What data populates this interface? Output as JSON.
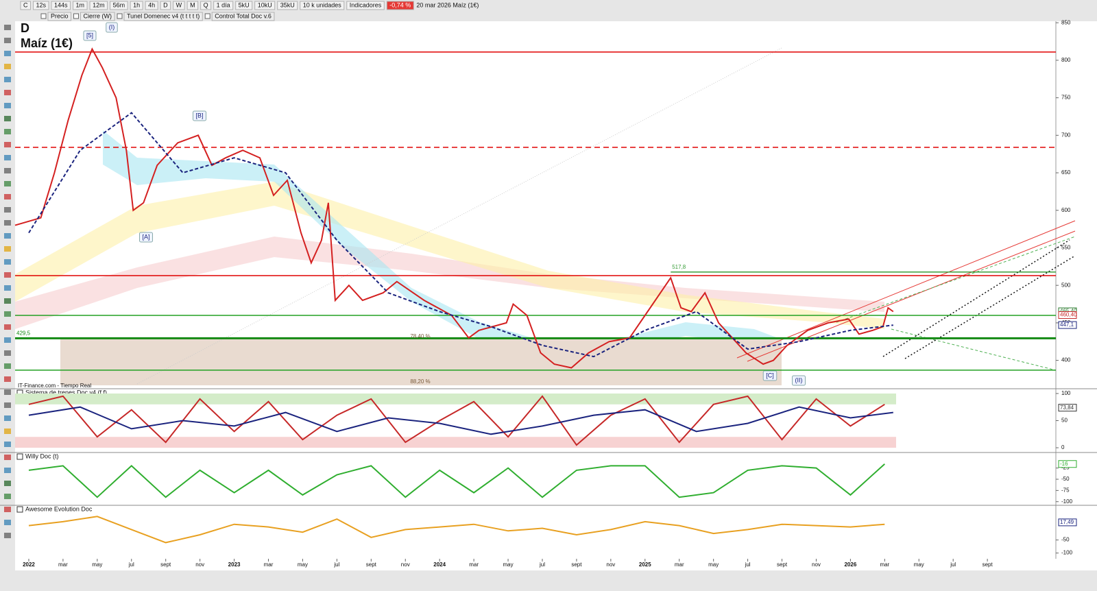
{
  "toolbar": {
    "items": [
      "C",
      "12s",
      "144s",
      "1m",
      "12m",
      "56m",
      "1h",
      "4h",
      "D",
      "W",
      "M",
      "Q",
      "1 día",
      "5kU",
      "10kU",
      "35kU",
      "10 k unidades",
      "Indicadores"
    ],
    "change": "-0,74 %",
    "info": "20 mar 2026  Maíz (1€)"
  },
  "legend_bar": [
    "Precio",
    "Cierre (W)",
    "Tunel Domenec v4 (t t t t t)",
    "Control Total Doc v.6"
  ],
  "source": "IT-Finance.com - Tiempo Real",
  "chart_data": [
    {
      "type": "line",
      "subtitle": "D",
      "title": "Maíz (1€)",
      "annotations": [
        "[5]",
        "(I)",
        "[B]",
        "[A]",
        "[C]",
        "(II)",
        "78,40 %",
        "88,20 %"
      ],
      "xlim": [
        -0.8,
        60
      ],
      "xticks": [
        {
          "value": 0,
          "label": "2022"
        },
        {
          "value": 2,
          "label": "mar"
        },
        {
          "value": 4,
          "label": "may"
        },
        {
          "value": 6,
          "label": "jul"
        },
        {
          "value": 8,
          "label": "sept"
        },
        {
          "value": 10,
          "label": "nov"
        },
        {
          "value": 12,
          "label": "2023"
        },
        {
          "value": 14,
          "label": "mar"
        },
        {
          "value": 16,
          "label": "may"
        },
        {
          "value": 18,
          "label": "jul"
        },
        {
          "value": 20,
          "label": "sept"
        },
        {
          "value": 22,
          "label": "nov"
        },
        {
          "value": 24,
          "label": "2024"
        },
        {
          "value": 26,
          "label": "mar"
        },
        {
          "value": 28,
          "label": "may"
        },
        {
          "value": 30,
          "label": "jul"
        },
        {
          "value": 32,
          "label": "sept"
        },
        {
          "value": 34,
          "label": "nov"
        },
        {
          "value": 36,
          "label": "2025"
        },
        {
          "value": 38,
          "label": "mar"
        },
        {
          "value": 40,
          "label": "may"
        },
        {
          "value": 42,
          "label": "jul"
        },
        {
          "value": 44,
          "label": "sept"
        },
        {
          "value": 46,
          "label": "nov"
        },
        {
          "value": 48,
          "label": "2026"
        },
        {
          "value": 50,
          "label": "mar"
        },
        {
          "value": 52,
          "label": "may"
        },
        {
          "value": 54,
          "label": "jul"
        },
        {
          "value": 56,
          "label": "sept"
        }
      ],
      "ylim": [
        364,
        852
      ],
      "yticks": [
        400,
        450,
        500,
        550,
        600,
        650,
        700,
        750,
        800,
        850
      ],
      "series": [
        {
          "color": "#d42020",
          "x": [
            -0.8,
            0.7,
            1.5,
            2.3,
            3.1,
            3.7,
            4.3,
            5.1,
            5.7,
            6.1,
            6.7,
            7.5,
            8.7,
            9.9,
            10.7,
            11.5,
            12.5,
            13.5,
            14.3,
            15.1,
            15.9,
            16.5,
            17.1,
            17.5,
            17.9,
            18.7,
            19.5,
            20.7,
            21.5,
            23.1,
            24.7,
            25.7,
            26.3,
            27.9,
            28.3,
            29.1,
            29.9,
            30.7,
            31.7,
            32.7,
            33.9,
            35.1,
            36.3,
            37.5,
            38.1,
            38.7,
            39.5,
            40.3,
            41.1,
            41.9,
            42.9,
            43.5,
            44.3,
            45.5,
            46.7,
            47.9,
            48.5,
            49.3,
            49.9,
            50.2,
            50.5
          ],
          "values": [
            580,
            590,
            650,
            720,
            780,
            815,
            790,
            750,
            680,
            600,
            610,
            660,
            690,
            700,
            660,
            670,
            680,
            670,
            620,
            640,
            570,
            530,
            560,
            610,
            480,
            500,
            480,
            490,
            505,
            480,
            460,
            430,
            440,
            450,
            475,
            460,
            410,
            395,
            390,
            410,
            425,
            430,
            470,
            510,
            470,
            465,
            490,
            450,
            430,
            410,
            395,
            400,
            420,
            440,
            450,
            455,
            435,
            440,
            445,
            470,
            465
          ]
        },
        {
          "color": "#1a237e",
          "dashed": true,
          "x": [
            0,
            3,
            6,
            9,
            12,
            15,
            18,
            21,
            24,
            27,
            30,
            33,
            36,
            39,
            42,
            45,
            48,
            50.5
          ],
          "values": [
            570,
            680,
            730,
            650,
            670,
            650,
            560,
            490,
            465,
            445,
            420,
            405,
            440,
            465,
            415,
            425,
            440,
            447
          ]
        }
      ],
      "levels": [
        {
          "value": 811,
          "color": "#e00000"
        },
        {
          "value": 684,
          "color": "#e00000",
          "dashed": true
        },
        {
          "value": 513,
          "color": "#e00000"
        },
        {
          "value": 517.8,
          "label": "517,8",
          "color": "#3a9e3a",
          "x_from": 37.5
        },
        {
          "value": 460,
          "color": "#22a022"
        },
        {
          "value": 429.5,
          "label": "429,5",
          "color": "#138a13",
          "width": 3
        },
        {
          "value": 387,
          "color": "#22a022"
        }
      ],
      "tags": [
        {
          "value": 465.4,
          "label": "465,40",
          "color": "#2e7d32"
        },
        {
          "value": 460.4,
          "label": "460,40",
          "color": "#c62828"
        },
        {
          "value": 447.1,
          "label": "447,1",
          "color": "#1a237e"
        }
      ]
    },
    {
      "type": "line",
      "title": "Sistema de trenes Doc v4 (f f)",
      "xlim": [
        -0.8,
        60
      ],
      "ylim": [
        -5,
        105
      ],
      "yticks": [
        0,
        50,
        100
      ],
      "zones": [
        {
          "from": 80,
          "to": 100,
          "color": "#d4ecc9"
        },
        {
          "from": 0,
          "to": 20,
          "color": "#f7d2d2"
        }
      ],
      "series": [
        {
          "color": "#c62828",
          "x": [
            0,
            2,
            4,
            6,
            8,
            10,
            12,
            14,
            16,
            18,
            20,
            22,
            24,
            26,
            28,
            30,
            32,
            34,
            36,
            38,
            40,
            42,
            44,
            46,
            48,
            50
          ],
          "values": [
            80,
            95,
            20,
            70,
            10,
            90,
            30,
            85,
            15,
            60,
            90,
            10,
            50,
            85,
            20,
            95,
            5,
            60,
            90,
            10,
            80,
            95,
            15,
            90,
            40,
            80
          ]
        },
        {
          "color": "#1a237e",
          "x": [
            0,
            3,
            6,
            9,
            12,
            15,
            18,
            21,
            24,
            27,
            30,
            33,
            36,
            39,
            42,
            45,
            48,
            50.5
          ],
          "values": [
            60,
            75,
            35,
            50,
            40,
            65,
            30,
            55,
            45,
            25,
            40,
            60,
            70,
            30,
            45,
            75,
            55,
            65
          ]
        }
      ],
      "tags": [
        {
          "value": 73.84,
          "label": "73,84",
          "color": "#333333"
        }
      ]
    },
    {
      "type": "line",
      "title": "Willy Doc (t)",
      "xlim": [
        -0.8,
        60
      ],
      "ylim": [
        -105,
        5
      ],
      "yticks": [
        -25,
        -50,
        -75,
        -100
      ],
      "series": [
        {
          "color": "#2fae2f",
          "x": [
            0,
            2,
            4,
            6,
            8,
            10,
            12,
            14,
            16,
            18,
            20,
            22,
            24,
            26,
            28,
            30,
            32,
            34,
            36,
            38,
            40,
            42,
            44,
            46,
            48,
            50
          ],
          "values": [
            -30,
            -20,
            -90,
            -20,
            -90,
            -30,
            -80,
            -30,
            -85,
            -40,
            -20,
            -90,
            -30,
            -80,
            -25,
            -90,
            -30,
            -20,
            -20,
            -90,
            -80,
            -30,
            -20,
            -25,
            -85,
            -16
          ]
        }
      ],
      "tags": [
        {
          "value": -16,
          "label": "-16",
          "color": "#2fae2f"
        }
      ]
    },
    {
      "type": "line",
      "title": "Awesome Evolution Doc",
      "xlim": [
        -0.8,
        60
      ],
      "ylim": [
        -122,
        75
      ],
      "yticks": [
        -50,
        -100
      ],
      "series": [
        {
          "color": "#e8a020",
          "x": [
            0,
            2,
            4,
            6,
            8,
            10,
            12,
            14,
            16,
            18,
            20,
            22,
            24,
            26,
            28,
            30,
            32,
            34,
            36,
            38,
            40,
            42,
            44,
            46,
            48,
            50
          ],
          "values": [
            5,
            20,
            40,
            -10,
            -60,
            -30,
            10,
            0,
            -20,
            30,
            -40,
            -10,
            0,
            10,
            -15,
            -5,
            -30,
            -10,
            20,
            5,
            -25,
            -10,
            10,
            5,
            0,
            10
          ]
        }
      ],
      "tags": [
        {
          "value": 17.49,
          "label": "17,49",
          "color": "#1a237e"
        }
      ]
    }
  ]
}
